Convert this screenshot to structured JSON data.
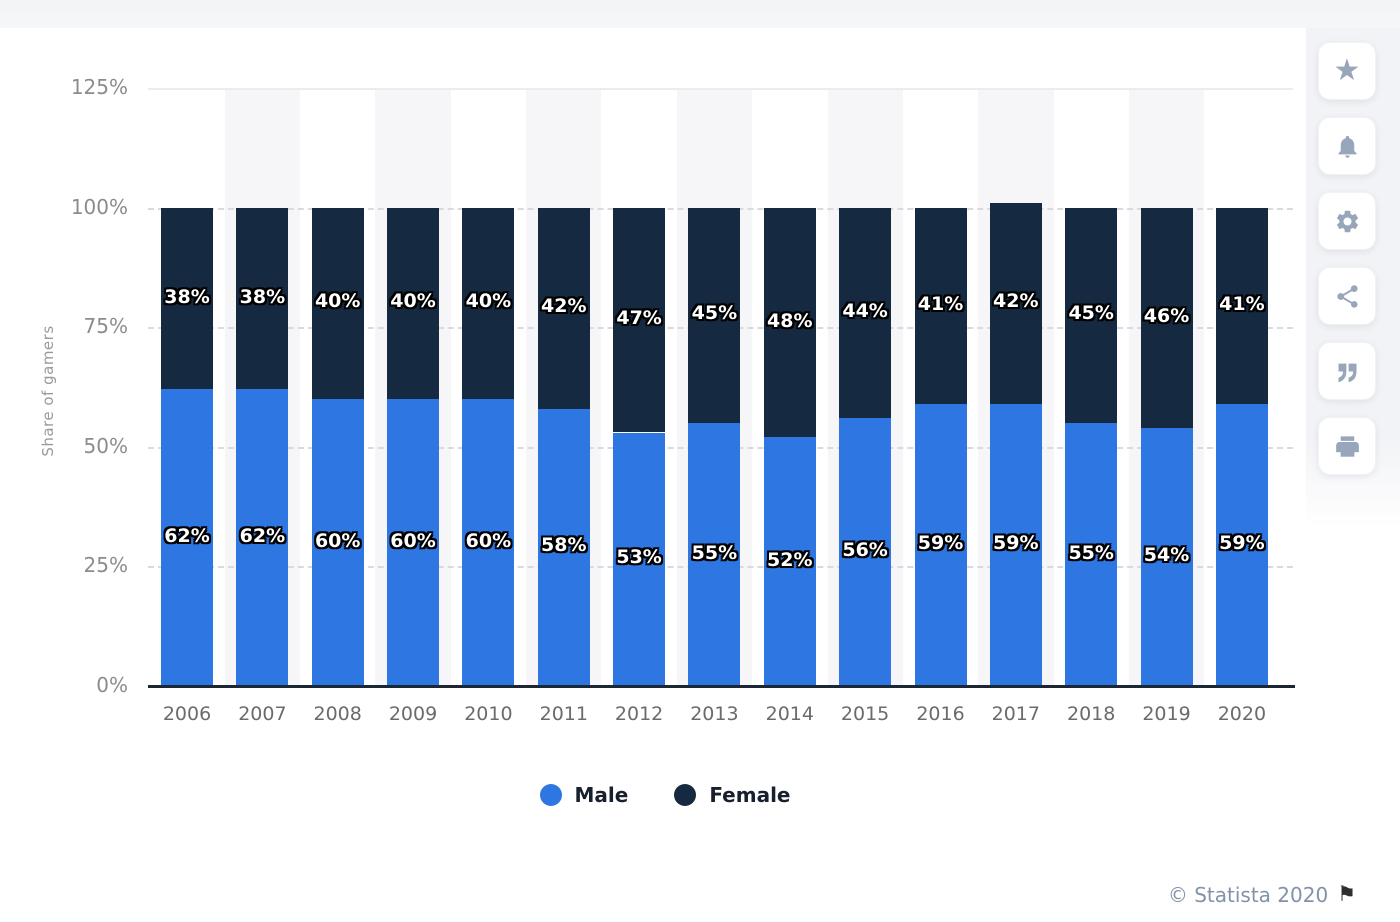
{
  "chart_data": {
    "type": "bar",
    "stacked": true,
    "title": "",
    "categories": [
      "2006",
      "2007",
      "2008",
      "2009",
      "2010",
      "2011",
      "2012",
      "2013",
      "2014",
      "2015",
      "2016",
      "2017",
      "2018",
      "2019",
      "2020"
    ],
    "series": [
      {
        "name": "Male",
        "color": "#2e76e2",
        "values": [
          62,
          62,
          60,
          60,
          60,
          58,
          53,
          55,
          52,
          56,
          59,
          59,
          55,
          54,
          59
        ]
      },
      {
        "name": "Female",
        "color": "#152a41",
        "values": [
          38,
          38,
          40,
          40,
          40,
          42,
          47,
          45,
          48,
          44,
          41,
          42,
          45,
          46,
          41
        ]
      }
    ],
    "xlabel": "",
    "ylabel": "Share of gamers",
    "unit": "%",
    "yticks": [
      "0%",
      "25%",
      "50%",
      "75%",
      "100%",
      "125%"
    ],
    "ylim": [
      0,
      125
    ],
    "grid": "dashed-horizontal",
    "background_stripes": "alternate-columns",
    "legend_position": "bottom",
    "data_labels": "inside-center-white-outlined"
  },
  "toolbar": {
    "buttons": [
      {
        "id": "favorite",
        "icon": "star-icon"
      },
      {
        "id": "notifications",
        "icon": "bell-icon"
      },
      {
        "id": "settings",
        "icon": "gear-icon"
      },
      {
        "id": "share",
        "icon": "share-icon"
      },
      {
        "id": "cite",
        "icon": "quote-icon"
      },
      {
        "id": "print",
        "icon": "printer-icon"
      }
    ]
  },
  "footer": {
    "credit": "© Statista 2020",
    "flag": "flag-icon"
  },
  "colors": {
    "male": "#2e76e2",
    "female": "#152a41",
    "page_strip": "#f3f4f6",
    "stripe": "#f6f6f9",
    "axis_line": "#1b2734",
    "tick_text": "#8c8c8c",
    "icon": "#97a6bb",
    "credit_text": "#8292a8"
  }
}
